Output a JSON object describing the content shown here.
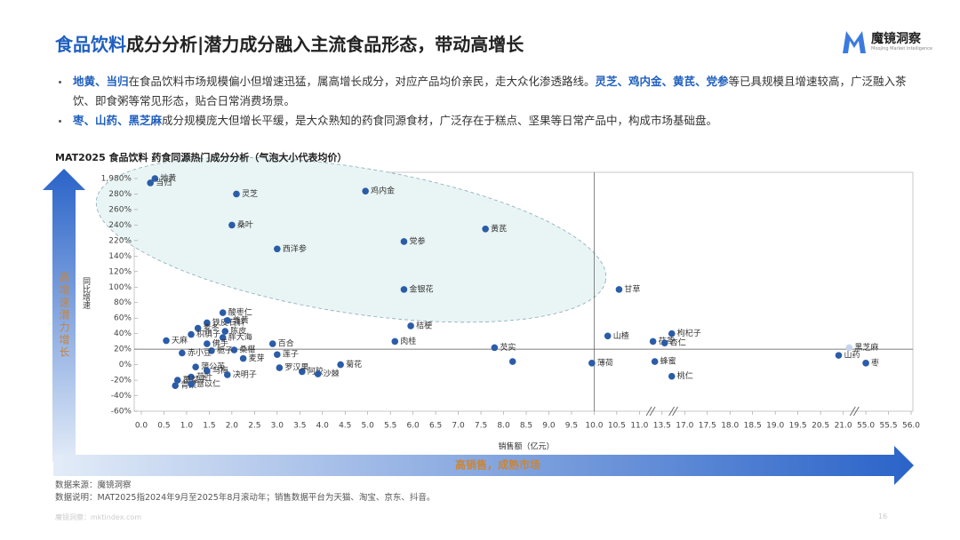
{
  "header": {
    "title_highlight": "食品饮料",
    "title": "成分分析|潜力成分融入主流食品形态，带动高增长",
    "logo": "魔镜洞察",
    "logo_subtitle": "Moojing Market Intelligence"
  },
  "bullets": [
    [
      {
        "text": "地黄、当归",
        "highlight": true
      },
      {
        "text": "在食品饮料市场规模偏小但增速迅猛，属高增长成分，对应产品均价亲民，走大众化渗透路线。",
        "highlight": false
      },
      {
        "text": "灵芝、鸡内金、黄芪、党参",
        "highlight": true
      },
      {
        "text": "等已具规模且增速较高，广泛融入茶饮、即食粥等常见形态，贴合日常消费场景。",
        "highlight": false
      }
    ],
    [
      {
        "text": "枣、山药、黑芝麻",
        "highlight": true
      },
      {
        "text": "成分规模庞大但增长平缓，是大众熟知的药食同源食材，广泛存在于糕点、坚果等日常产品中，构成市场基础盘。",
        "highlight": false
      }
    ]
  ],
  "chart_data": {
    "type": "scatter",
    "title": "MAT2025 食品饮料 药食同源热门成分分析（气泡大小代表均价）",
    "x_label": "销售额（亿元）",
    "y_label": "同比增速",
    "y_arrow_label": "高增速潜力增长",
    "x_arrow_label": "高销售，成熟市场",
    "color": "#2b5ca8",
    "xticks": [
      {
        "value": 0,
        "label": "0.0"
      },
      0.5,
      {
        "value": 1,
        "label": "1.0"
      },
      1.5,
      {
        "value": 2,
        "label": "2.0"
      },
      2.5,
      {
        "value": 3,
        "label": "3.0"
      },
      3.5,
      {
        "value": 4,
        "label": "4.0"
      },
      4.5,
      {
        "value": 5,
        "label": "5.0"
      },
      5.5,
      {
        "value": 6,
        "label": "6.0"
      },
      6.5,
      {
        "value": 7,
        "label": "7.0"
      },
      7.5,
      {
        "value": 8,
        "label": "8.0"
      },
      8.5,
      {
        "value": 9,
        "label": "9.0"
      },
      9.5,
      {
        "value": 10,
        "label": "10.0"
      },
      10.5,
      {
        "value": 11,
        "label": "11.0"
      },
      13.5,
      {
        "value": 17,
        "label": "17.0"
      },
      17.5,
      {
        "value": 18,
        "label": "18.0"
      },
      18.5,
      {
        "value": 19,
        "label": "19.0"
      },
      19.5,
      20.5,
      {
        "value": 21,
        "label": "21.0"
      },
      {
        "value": 55,
        "label": "55.0"
      },
      55.5,
      {
        "value": 56,
        "label": "56.0"
      }
    ],
    "xlim": [
      0,
      56
    ],
    "yticks": [
      {
        "value": -60,
        "label": "-60%"
      },
      {
        "value": -40,
        "label": "-40%"
      },
      {
        "value": -20,
        "label": "-20%"
      },
      {
        "value": 0,
        "label": "0%"
      },
      {
        "value": 20,
        "label": "20%"
      },
      {
        "value": 40,
        "label": "40%"
      },
      {
        "value": 60,
        "label": "60%"
      },
      {
        "value": 80,
        "label": "80%"
      },
      {
        "value": 100,
        "label": "100%"
      },
      {
        "value": 120,
        "label": "120%"
      },
      {
        "value": 140,
        "label": "140%"
      },
      {
        "value": 220,
        "label": "220%"
      },
      {
        "value": 240,
        "label": "240%"
      },
      {
        "value": 260,
        "label": "260%"
      },
      {
        "value": 280,
        "label": "280%"
      },
      {
        "value": 1980,
        "label": "1,980%"
      }
    ],
    "ylim": [
      -60,
      1980
    ],
    "reference_x": 10,
    "reference_y": 20,
    "points": [
      {
        "label": "地黄",
        "x": 0.3,
        "y": 1980
      },
      {
        "label": "当归",
        "x": 0.2,
        "y": 1500
      },
      {
        "label": "灵芝",
        "x": 2.1,
        "y": 280
      },
      {
        "label": "桑叶",
        "x": 2.0,
        "y": 240
      },
      {
        "label": "鸡内金",
        "x": 4.95,
        "y": 600
      },
      {
        "label": "黄芪",
        "x": 7.6,
        "y": 235
      },
      {
        "label": "党参",
        "x": 5.8,
        "y": 215
      },
      {
        "label": "西洋参",
        "x": 3.0,
        "y": 177
      },
      {
        "label": "金银花",
        "x": 5.8,
        "y": 97
      },
      {
        "label": "甘草",
        "x": 10.55,
        "y": 97
      },
      {
        "label": "桔梗",
        "x": 5.95,
        "y": 50
      },
      {
        "label": "肉桂",
        "x": 5.6,
        "y": 30
      },
      {
        "label": "芡实",
        "x": 7.8,
        "y": 22
      },
      {
        "label": null,
        "x": 8.2,
        "y": 4
      },
      {
        "label": "薄荷",
        "x": 9.95,
        "y": 2
      },
      {
        "label": "山楂",
        "x": 10.3,
        "y": 37
      },
      {
        "label": "茯苓",
        "x": 12.5,
        "y": 30
      },
      {
        "label": "杏仁",
        "x": 13.9,
        "y": 28
      },
      {
        "label": "枸杞子",
        "x": 15.0,
        "y": 40
      },
      {
        "label": "蜂蜜",
        "x": 12.7,
        "y": 4
      },
      {
        "label": "桃仁",
        "x": 15.0,
        "y": -15
      },
      {
        "label": "黑芝麻",
        "x": 30,
        "y": 22,
        "color": "#c5d5ee"
      },
      {
        "label": "山药",
        "x": 20.9,
        "y": 12
      },
      {
        "label": "枣",
        "x": 55.0,
        "y": 2
      },
      {
        "label": "铁皮石斛",
        "x": 1.45,
        "y": 54
      },
      {
        "label": "酸枣仁",
        "x": 1.8,
        "y": 67
      },
      {
        "label": "姜黄",
        "x": 1.9,
        "y": 57
      },
      {
        "label": "麦冬",
        "x": 1.25,
        "y": 47
      },
      {
        "label": "陈皮",
        "x": 1.85,
        "y": 43
      },
      {
        "label": "枳椇子",
        "x": 1.1,
        "y": 39
      },
      {
        "label": "胖大海",
        "x": 1.8,
        "y": 35
      },
      {
        "label": "天麻",
        "x": 0.55,
        "y": 31
      },
      {
        "label": "佛手",
        "x": 1.45,
        "y": 27
      },
      {
        "label": "百合",
        "x": 2.9,
        "y": 27
      },
      {
        "label": "桑椹",
        "x": 2.05,
        "y": 19
      },
      {
        "label": "莲子",
        "x": 3.0,
        "y": 13
      },
      {
        "label": "栀子",
        "x": 1.55,
        "y": 18
      },
      {
        "label": "赤小豆",
        "x": 0.9,
        "y": 15
      },
      {
        "label": "麦芽",
        "x": 2.25,
        "y": 8
      },
      {
        "label": "蒲公英",
        "x": 1.2,
        "y": -3
      },
      {
        "label": "阿胶",
        "x": 3.55,
        "y": -9
      },
      {
        "label": "沙棘",
        "x": 3.9,
        "y": -12
      },
      {
        "label": "菊花",
        "x": 4.4,
        "y": 0
      },
      {
        "label": "罗汉果",
        "x": 3.05,
        "y": -4
      },
      {
        "label": "乌梅",
        "x": 1.45,
        "y": -8
      },
      {
        "label": "决明子",
        "x": 1.9,
        "y": -13
      },
      {
        "label": "荷叶",
        "x": 1.1,
        "y": -16
      },
      {
        "label": "覆盆子",
        "x": 0.8,
        "y": -20
      },
      {
        "label": "青果",
        "x": 0.75,
        "y": -27
      },
      {
        "label": "薏苡仁",
        "x": 1.1,
        "y": -25
      }
    ]
  },
  "notes": {
    "source": "数据来源：魔镜洞察",
    "description": "数据说明：MAT2025指2024年9月至2025年8月滚动年；销售数据平台为天猫、淘宝、京东、抖音。"
  },
  "footer": {
    "site": "魔镜洞察：mktindex.com",
    "page": "16"
  }
}
